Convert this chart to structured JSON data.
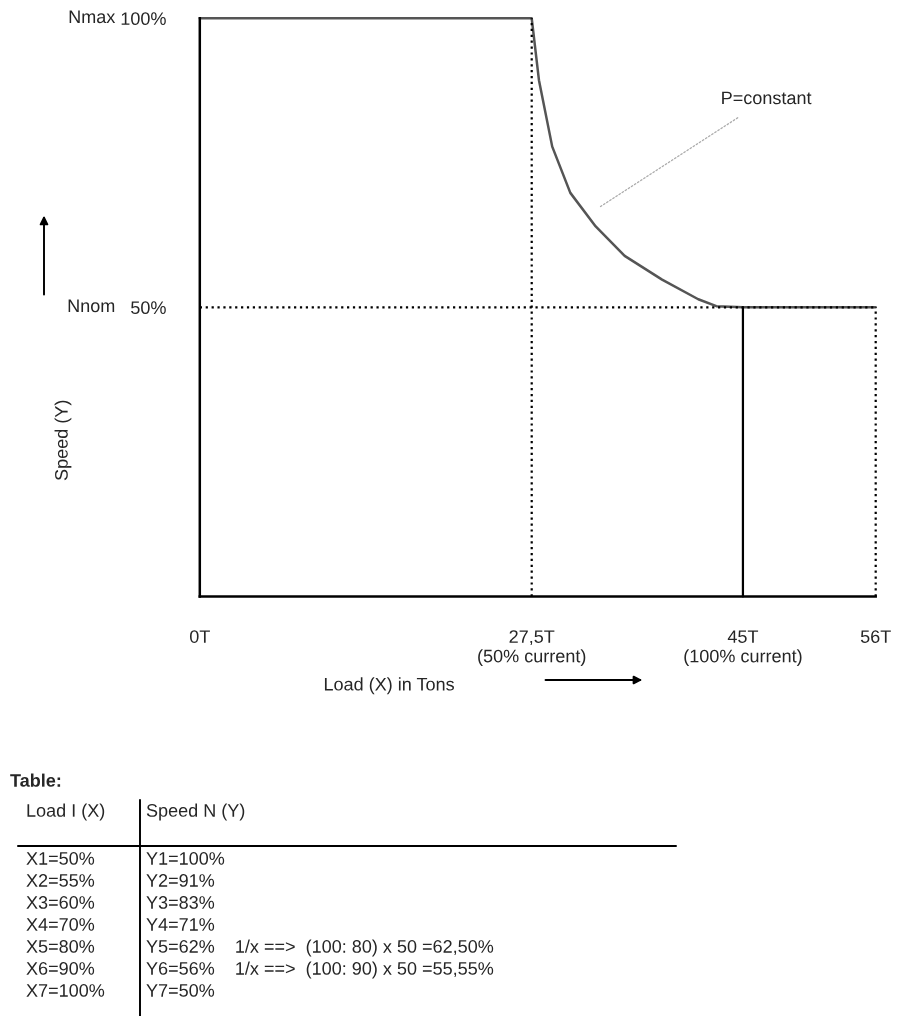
{
  "chart_data": {
    "type": "line",
    "xlabel": "Load (X) in Tons",
    "ylabel": "Speed (Y)",
    "x": [
      0,
      27.5,
      28.1,
      29.2,
      30.7,
      32.8,
      35.2,
      38.3,
      41.3,
      42.8,
      45,
      56
    ],
    "series": [
      {
        "color": "#555555",
        "values": [
          100,
          100,
          89.3,
          77.8,
          69.8,
          64.0,
          58.9,
          54.8,
          51.4,
          50.2,
          50,
          50
        ]
      }
    ],
    "xlim": [
      0,
      56
    ],
    "ylim": [
      0,
      100
    ],
    "xticks": [
      {
        "value": 0,
        "label": "0T"
      },
      {
        "value": 27.5,
        "label": "27,5T\n(50% current)"
      },
      {
        "value": 45,
        "label": "45T\n(100% current)"
      },
      {
        "value": 56,
        "label": "56T"
      }
    ],
    "yticks": [
      {
        "value": 50,
        "label": "50%"
      },
      {
        "value": 100,
        "label": "100%"
      }
    ],
    "ref_lines": [
      {
        "axis": "x",
        "value": 27.5,
        "line_style": "dotted"
      },
      {
        "axis": "y",
        "value": 50,
        "line_style": "dotted"
      },
      {
        "axis": "x",
        "value": 45,
        "line_style": "solid"
      },
      {
        "axis": "x",
        "value": 56,
        "line_style": "dotted"
      }
    ],
    "marker": "none",
    "line_style": "solid",
    "grid": false,
    "legend": false,
    "annotations": [
      {
        "text": "P=constant",
        "x": 32.8,
        "y": 66.9
      },
      "Nnom",
      "Nmax",
      "Table:",
      "Load I (X)",
      "Speed N (Y)",
      "X1=50%",
      "Y1=100%",
      "X2=55%",
      "Y2=91%",
      "X3=60%",
      "Y3=83%",
      "X4=70%",
      "Y4=71%",
      "X5=80%",
      "Y5=62%    1/x ==>  (100: 80) x 50 =62,50%",
      "X6=90%",
      "Y6=56%    1/x ==>  (100: 90) x 50 =55,55%",
      "X7=100%",
      "Y7=50%"
    ]
  }
}
